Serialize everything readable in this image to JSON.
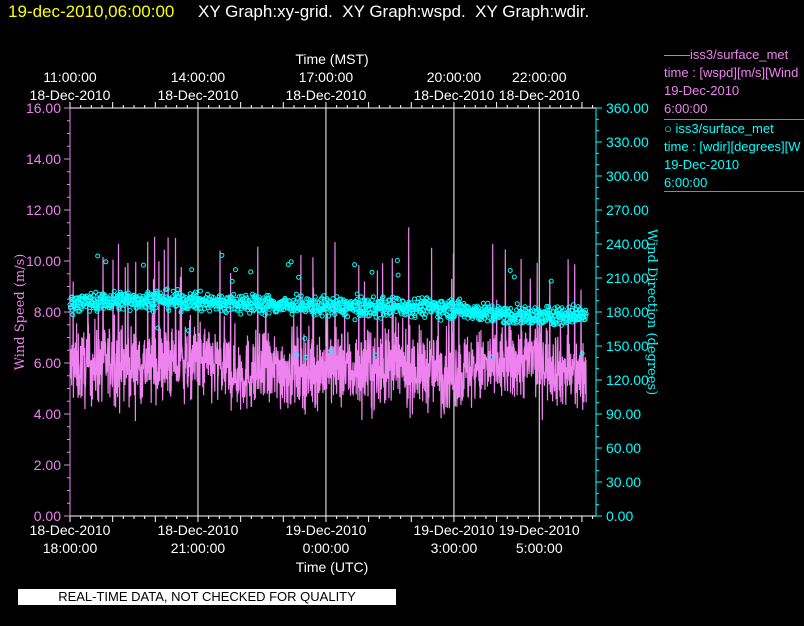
{
  "header": {
    "timestamp": "19-dec-2010,06:00:00",
    "graphs": "XY Graph:xy-grid.  XY Graph:wspd.  XY Graph:wdir."
  },
  "legend": {
    "wspd": {
      "line1": "——iss3/surface_met",
      "line2": "time : [wspd][m/s][Wind",
      "line3": "19-Dec-2010",
      "line4": "6:00:00",
      "color": "#ee82ee"
    },
    "wdir": {
      "line1": "○ iss3/surface_met",
      "line2": "time : [wdir][degrees][W",
      "line3": "19-Dec-2010",
      "line4": "6:00:00",
      "color": "#00ffff"
    }
  },
  "disclaimer": "REAL-TIME DATA, NOT CHECKED FOR QUALITY",
  "chart_data": {
    "type": "line",
    "top_axis": {
      "label": "Time (MST)",
      "ticks": [
        {
          "hour": 0,
          "time": "11:00:00",
          "date": "18-Dec-2010"
        },
        {
          "hour": 3,
          "time": "14:00:00",
          "date": "18-Dec-2010"
        },
        {
          "hour": 6,
          "time": "17:00:00",
          "date": "18-Dec-2010"
        },
        {
          "hour": 9,
          "time": "20:00:00",
          "date": "18-Dec-2010"
        },
        {
          "hour": 11,
          "time": "22:00:00",
          "date": "18-Dec-2010"
        }
      ]
    },
    "bottom_axis": {
      "label": "Time (UTC)",
      "ticks": [
        {
          "hour": 0,
          "date": "18-Dec-2010",
          "time": "18:00:00"
        },
        {
          "hour": 3,
          "date": "18-Dec-2010",
          "time": "21:00:00"
        },
        {
          "hour": 6,
          "date": "19-Dec-2010",
          "time": "0:00:00"
        },
        {
          "hour": 9,
          "date": "19-Dec-2010",
          "time": "3:00:00"
        },
        {
          "hour": 11,
          "date": "19-Dec-2010",
          "time": "5:00:00"
        }
      ]
    },
    "x_range_hours_utc": [
      0,
      12
    ],
    "data_end_hour": 12.1,
    "left_axis": {
      "label": "Wind Speed (m/s)",
      "range": [
        0,
        16
      ],
      "ticks": [
        "0.00",
        "2.00",
        "4.00",
        "6.00",
        "8.00",
        "10.00",
        "12.00",
        "14.00",
        "16.00"
      ],
      "color": "#ee82ee"
    },
    "right_axis": {
      "label": "Wind Direction (degrees)",
      "range": [
        0,
        360
      ],
      "ticks": [
        "0.00",
        "30.00",
        "60.00",
        "90.00",
        "120.00",
        "150.00",
        "180.00",
        "210.00",
        "240.00",
        "270.00",
        "300.00",
        "330.00",
        "360.00"
      ],
      "color": "#00ffff"
    },
    "grid": true,
    "series": [
      {
        "name": "iss3/surface_met wspd",
        "style": "line",
        "axis": "left",
        "mean_profile": [
          [
            0,
            5.8
          ],
          [
            1,
            6.0
          ],
          [
            2,
            5.9
          ],
          [
            3,
            6.1
          ],
          [
            4,
            5.6
          ],
          [
            5,
            5.7
          ],
          [
            6,
            5.8
          ],
          [
            7,
            5.7
          ],
          [
            8,
            5.8
          ],
          [
            9,
            5.6
          ],
          [
            10,
            5.9
          ],
          [
            11,
            6.2
          ],
          [
            12,
            5.4
          ]
        ],
        "typical_range": [
          2.5,
          11.8
        ]
      },
      {
        "name": "iss3/surface_met wdir",
        "style": "scatter",
        "axis": "right",
        "mean_profile": [
          [
            0,
            188
          ],
          [
            1,
            190
          ],
          [
            2,
            191
          ],
          [
            3,
            189
          ],
          [
            4,
            188
          ],
          [
            5,
            186
          ],
          [
            6,
            185
          ],
          [
            7,
            184
          ],
          [
            8,
            185
          ],
          [
            9,
            183
          ],
          [
            10,
            178
          ],
          [
            11,
            176
          ],
          [
            12,
            178
          ]
        ],
        "typical_range": [
          140,
          230
        ]
      }
    ]
  }
}
